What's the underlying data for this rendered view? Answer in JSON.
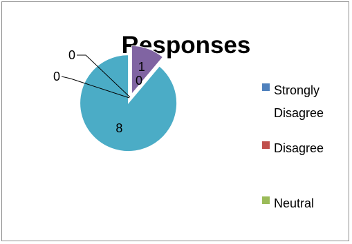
{
  "chart_data": {
    "type": "pie",
    "title": "Responses",
    "exploded": true,
    "slices": [
      {
        "label": "Strongly Disagree",
        "value": 0,
        "data_label": "0",
        "color": "#4f81bd"
      },
      {
        "label": "Disagree",
        "value": 0,
        "data_label": "0",
        "color": "#c0504d"
      },
      {
        "label": "Neutral",
        "value": 0,
        "data_label": "0",
        "color": "#9bbb59"
      },
      {
        "label": "",
        "value": 1,
        "data_label": "1",
        "color": "#8064a2"
      },
      {
        "label": "",
        "value": 8,
        "data_label": "8",
        "color": "#4bacc6"
      }
    ],
    "legend": {
      "position": "right",
      "entries": [
        {
          "lines": [
            "Strongly",
            "Disagree"
          ],
          "color": "#4f81bd"
        },
        {
          "lines": [
            "Disagree"
          ],
          "color": "#c0504d"
        },
        {
          "lines": [
            "Neutral"
          ],
          "color": "#9bbb59"
        }
      ]
    }
  }
}
